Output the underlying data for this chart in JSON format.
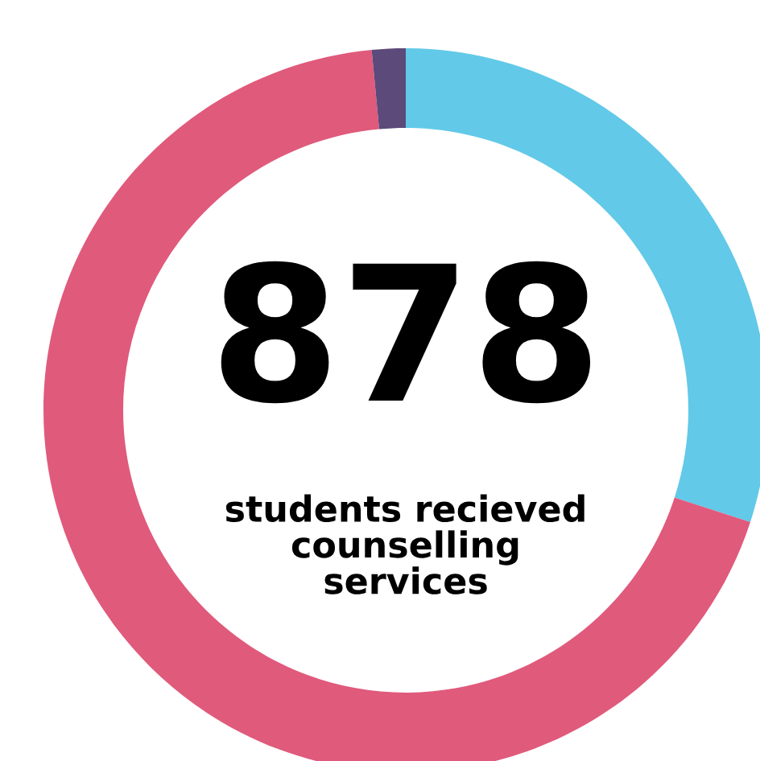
{
  "chart_data": {
    "type": "donut",
    "categories": [
      null,
      null,
      null
    ],
    "values": [
      30,
      68.5,
      1.5
    ],
    "colors": [
      "#62c9e8",
      "#e05a7c",
      "#5c4a7a"
    ],
    "annotations": [
      "878",
      "students recieved\ncounselling\nservices"
    ]
  }
}
